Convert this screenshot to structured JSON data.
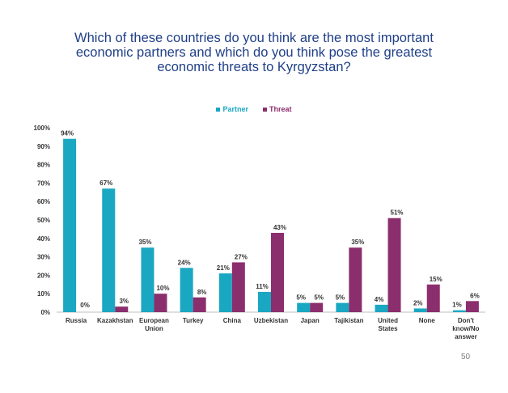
{
  "chart_data": {
    "type": "bar",
    "title_lines": [
      "Which of these countries do you think are the most important",
      "economic partners and which do you think pose the greatest",
      "economic threats to Kyrgyzstan?"
    ],
    "categories": [
      [
        "Russia"
      ],
      [
        "Kazakhstan"
      ],
      [
        "European",
        "Union"
      ],
      [
        "Turkey"
      ],
      [
        "China"
      ],
      [
        "Uzbekistan"
      ],
      [
        "Japan"
      ],
      [
        "Tajikistan"
      ],
      [
        "United",
        "States"
      ],
      [
        "None"
      ],
      [
        "Don't",
        "know/No",
        "answer"
      ]
    ],
    "series": [
      {
        "name": "Partner",
        "color": "#1aa7c2",
        "values": [
          94,
          67,
          35,
          24,
          21,
          11,
          5,
          5,
          4,
          2,
          1
        ],
        "labels": [
          "94%",
          "67%",
          "35%",
          "24%",
          "21%",
          "11%",
          "5%",
          "5%",
          "4%",
          "2%",
          "1%"
        ]
      },
      {
        "name": "Threat",
        "color": "#8b2e6d",
        "values": [
          0,
          3,
          10,
          8,
          27,
          43,
          5,
          35,
          51,
          15,
          6
        ],
        "labels": [
          "0%",
          "3%",
          "10%",
          "8%",
          "27%",
          "43%",
          "5%",
          "35%",
          "51%",
          "15%",
          "6%"
        ]
      }
    ],
    "ylim": [
      0,
      100
    ],
    "yticks": [
      0,
      10,
      20,
      30,
      40,
      50,
      60,
      70,
      80,
      90,
      100
    ],
    "ytick_labels": [
      "0%",
      "10%",
      "20%",
      "30%",
      "40%",
      "50%",
      "60%",
      "70%",
      "80%",
      "90%",
      "100%"
    ],
    "legend_position": "top",
    "grid": false
  },
  "page_number": "50"
}
